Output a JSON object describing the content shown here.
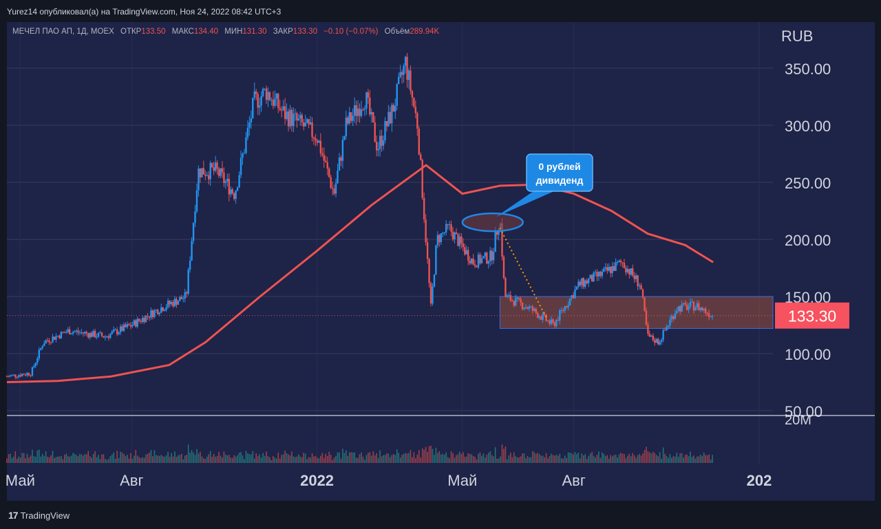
{
  "header": {
    "publish_line": "Yurez14 опубликовал(а) на TradingView.com, Ноя 24, 2022 08:42 UTC+3"
  },
  "legend": {
    "symbol": "МЕЧЕЛ ПАО АП, 1Д, MOEX",
    "open_label": "ОТКР",
    "open_value": "133.50",
    "high_label": "МАКС",
    "high_value": "134.40",
    "low_label": "МИН",
    "low_value": "131.30",
    "close_label": "ЗАКР",
    "close_value": "133.30",
    "change": "−0.10 (−0.07%)",
    "volume_label": "Объём",
    "volume_value": "289.94K"
  },
  "footer": {
    "brand": "TradingView"
  },
  "callout": {
    "text_line1": "0 рублей",
    "text_line2": "дивиденд"
  },
  "colors": {
    "up": "#2196f3",
    "down": "#ef5350",
    "ma": "#ef5350",
    "bg": "#1e2348",
    "box": "rgba(150,80,60,0.55)",
    "accent": "#f7525f",
    "callout": "#1e88e5",
    "arrow": "#ff9800"
  },
  "chart_data": {
    "type": "candlestick",
    "currency_label": "RUB",
    "last_price": "133.30",
    "volume_axis_label": "20M",
    "y_ticks": [
      "350.00",
      "300.00",
      "250.00",
      "200.00",
      "150.00",
      "100.00",
      "50.00"
    ],
    "y_tick_values": [
      350,
      300,
      250,
      200,
      150,
      100,
      50
    ],
    "x_tick_labels": [
      "Май",
      "Авг",
      "2022",
      "Май",
      "Авг",
      "202"
    ],
    "x_tick_dates": [
      "2021-05-01",
      "2021-08-01",
      "2022-01-01",
      "2022-05-01",
      "2022-08-01",
      "2023-01-01"
    ],
    "price_path": [
      [
        "2021-04-20",
        80
      ],
      [
        "2021-05-10",
        83
      ],
      [
        "2021-05-20",
        110
      ],
      [
        "2021-06-10",
        120
      ],
      [
        "2021-07-10",
        115
      ],
      [
        "2021-08-01",
        125
      ],
      [
        "2021-08-25",
        140
      ],
      [
        "2021-09-15",
        150
      ],
      [
        "2021-09-25",
        260
      ],
      [
        "2021-10-10",
        260
      ],
      [
        "2021-10-25",
        240
      ],
      [
        "2021-11-10",
        320
      ],
      [
        "2021-11-20",
        330
      ],
      [
        "2021-12-05",
        310
      ],
      [
        "2021-12-20",
        300
      ],
      [
        "2022-01-01",
        290
      ],
      [
        "2022-01-15",
        240
      ],
      [
        "2022-01-25",
        300
      ],
      [
        "2022-02-10",
        325
      ],
      [
        "2022-02-20",
        280
      ],
      [
        "2022-03-05",
        315
      ],
      [
        "2022-03-15",
        355
      ],
      [
        "2022-03-25",
        300
      ],
      [
        "2022-04-05",
        140
      ],
      [
        "2022-04-10",
        200
      ],
      [
        "2022-04-20",
        210
      ],
      [
        "2022-05-10",
        180
      ],
      [
        "2022-05-25",
        185
      ],
      [
        "2022-06-01",
        220
      ],
      [
        "2022-06-05",
        150
      ],
      [
        "2022-06-25",
        140
      ],
      [
        "2022-07-15",
        125
      ],
      [
        "2022-08-05",
        160
      ],
      [
        "2022-08-25",
        170
      ],
      [
        "2022-09-10",
        180
      ],
      [
        "2022-09-25",
        160
      ],
      [
        "2022-10-01",
        115
      ],
      [
        "2022-10-10",
        110
      ],
      [
        "2022-10-25",
        140
      ],
      [
        "2022-11-10",
        142
      ],
      [
        "2022-11-24",
        133.3
      ]
    ],
    "moving_average": [
      [
        "2021-04-20",
        75
      ],
      [
        "2021-06-01",
        76
      ],
      [
        "2021-07-15",
        80
      ],
      [
        "2021-09-01",
        90
      ],
      [
        "2021-10-01",
        110
      ],
      [
        "2021-11-15",
        150
      ],
      [
        "2022-01-01",
        190
      ],
      [
        "2022-02-15",
        230
      ],
      [
        "2022-04-01",
        265
      ],
      [
        "2022-05-01",
        240
      ],
      [
        "2022-06-01",
        247
      ],
      [
        "2022-07-01",
        248
      ],
      [
        "2022-08-01",
        240
      ],
      [
        "2022-09-01",
        225
      ],
      [
        "2022-10-01",
        205
      ],
      [
        "2022-11-01",
        195
      ],
      [
        "2022-11-24",
        180
      ]
    ],
    "range_box": {
      "x_from": "2022-06-01",
      "x_to": "2023-01-01",
      "y_from": 122,
      "y_to": 150
    },
    "highlight_ellipse": {
      "x_from": "2022-05-01",
      "x_to": "2022-06-20",
      "y_center": 215
    },
    "dotted_arrow": [
      [
        "2022-06-01",
        210
      ],
      [
        "2022-07-10",
        130
      ]
    ],
    "grid": true
  }
}
